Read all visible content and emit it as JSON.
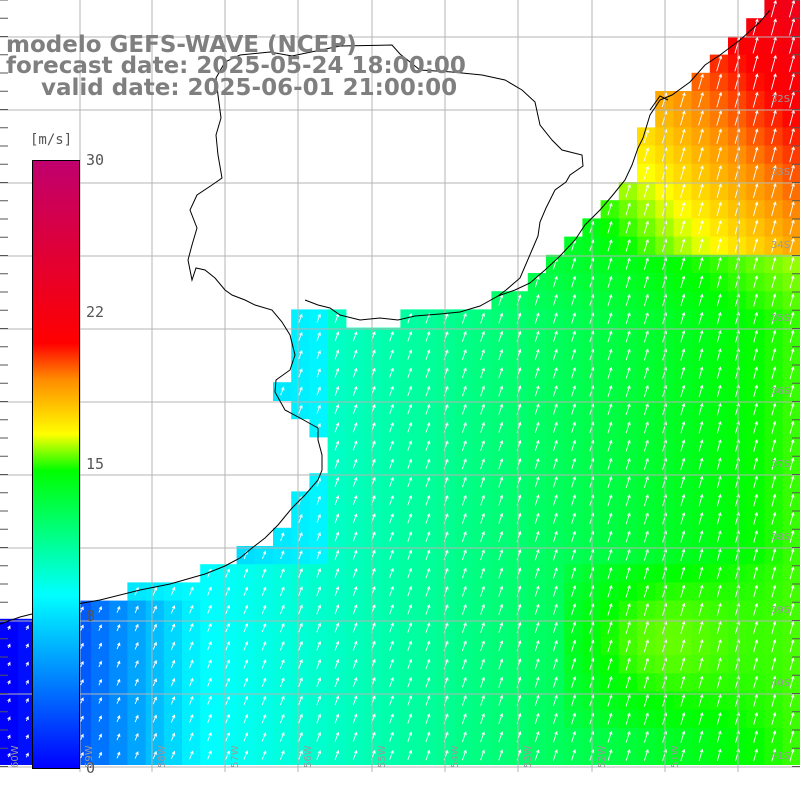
{
  "header": {
    "line1": "modelo GEFS-WAVE (NCEP)",
    "line2": "forecast date: 2025-05-24 18:00:00",
    "line3": "valid date: 2025-06-01 21:00:00"
  },
  "colorbar": {
    "unit": "[m/s]",
    "ticks": [
      "30",
      "22",
      "15",
      "8",
      "0"
    ],
    "colors": [
      "#0000ff",
      "#00ffff",
      "#00ff00",
      "#ffff00",
      "#ff8c00",
      "#ff0000",
      "#c0006e"
    ]
  },
  "lat_labels": [
    "32S",
    "33S",
    "34S",
    "35S",
    "36S",
    "37S",
    "38S",
    "39S",
    "40S",
    "41S"
  ],
  "lon_labels": [
    "60W",
    "59W",
    "58W",
    "57W",
    "56W",
    "55W",
    "54W",
    "53W",
    "52W",
    "51W"
  ],
  "map": {
    "ocean_color_scale": "wind speed",
    "land_color": "#ffffff",
    "grid_color": "#b4b4b4",
    "coast_color": "#000000",
    "arrow_color": "#ffffff"
  }
}
